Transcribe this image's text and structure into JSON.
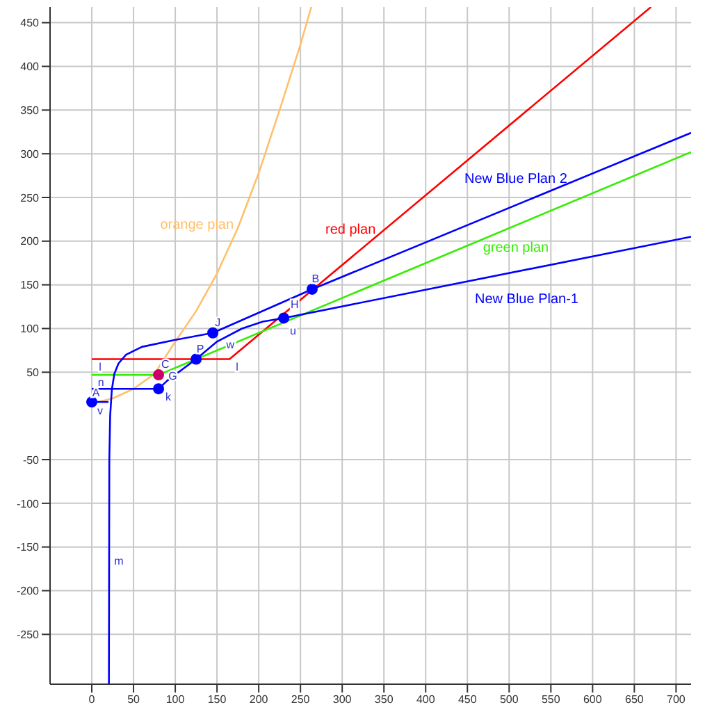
{
  "chart_data": {
    "type": "line",
    "xlim": [
      -50,
      718
    ],
    "ylim": [
      -307,
      468
    ],
    "xticks": [
      0,
      50,
      100,
      150,
      200,
      250,
      300,
      350,
      400,
      450,
      500,
      550,
      600,
      650,
      700
    ],
    "yticks": [
      -250,
      -200,
      -150,
      -100,
      -50,
      50,
      100,
      150,
      200,
      250,
      300,
      350,
      400,
      450
    ],
    "grid": true,
    "legend": false,
    "marker": "none",
    "line_style": "solid",
    "series": [
      {
        "name": "orange plan",
        "color": "#ffc06a",
        "x": [
          8,
          25,
          50,
          75,
          100,
          125,
          150,
          175,
          200,
          225,
          250,
          263
        ],
        "values": [
          16,
          20,
          31,
          48,
          85,
          120,
          163,
          215,
          278,
          350,
          425,
          468
        ]
      },
      {
        "name": "red plan",
        "color": "#ff0000",
        "x": [
          0,
          165,
          670
        ],
        "values": [
          65,
          65,
          468
        ]
      },
      {
        "name": "green plan",
        "color": "#33ee00",
        "x": [
          0,
          80,
          718
        ],
        "values": [
          47,
          47,
          302
        ]
      },
      {
        "name": "New Blue Plan-1",
        "color": "#0000ff",
        "x": [
          0,
          80,
          90,
          125,
          150,
          180,
          205,
          230,
          718
        ],
        "values": [
          31,
          31,
          40,
          65,
          85,
          100,
          108,
          112,
          205
        ]
      },
      {
        "name": "New Blue Plan 2",
        "color": "#0000ff",
        "x": [
          145,
          264,
          718
        ],
        "values": [
          95,
          145,
          324
        ]
      },
      {
        "color": "#0000ff",
        "x": [
          20.5,
          21,
          22,
          24,
          27,
          32,
          41,
          60,
          100,
          145
        ],
        "values": [
          -307,
          -50,
          0,
          30,
          48,
          60,
          70,
          79,
          87,
          95
        ]
      },
      {
        "color": "#0000ff",
        "x": [
          0,
          20
        ],
        "values": [
          16,
          16
        ]
      },
      {
        "type": "scatter",
        "marker": "circle",
        "colors": [
          "#0000ff",
          "#0000ff",
          "#cc0066",
          "#0000ff",
          "#0000ff",
          "#0000ff",
          "#0000ff"
        ],
        "x": [
          0,
          80,
          80,
          125,
          145,
          230,
          264
        ],
        "values": [
          16,
          31,
          47,
          65,
          95,
          112,
          145
        ]
      }
    ],
    "annotations": [
      {
        "text": "A",
        "x": 5,
        "y": 26
      },
      {
        "text": "v",
        "x": 10,
        "y": 16
      },
      {
        "text": "n",
        "x": 11,
        "y": 38
      },
      {
        "text": "l",
        "x": 10,
        "y": 65
      },
      {
        "text": "l",
        "x": 174,
        "y": 65
      },
      {
        "text": "C",
        "x": 88,
        "y": 58
      },
      {
        "text": "G",
        "x": 97,
        "y": 45
      },
      {
        "text": "k",
        "x": 90,
        "y": 40
      },
      {
        "text": "P",
        "x": 130,
        "y": 76
      },
      {
        "text": "J",
        "x": 151,
        "y": 106
      },
      {
        "text": "w",
        "x": 166,
        "y": 81
      },
      {
        "text": "H",
        "x": 243,
        "y": 127
      },
      {
        "text": "u",
        "x": 241,
        "y": 114
      },
      {
        "text": "B",
        "x": 268,
        "y": 156
      },
      {
        "text": "m",
        "x": 20.8,
        "y": -167
      }
    ]
  }
}
